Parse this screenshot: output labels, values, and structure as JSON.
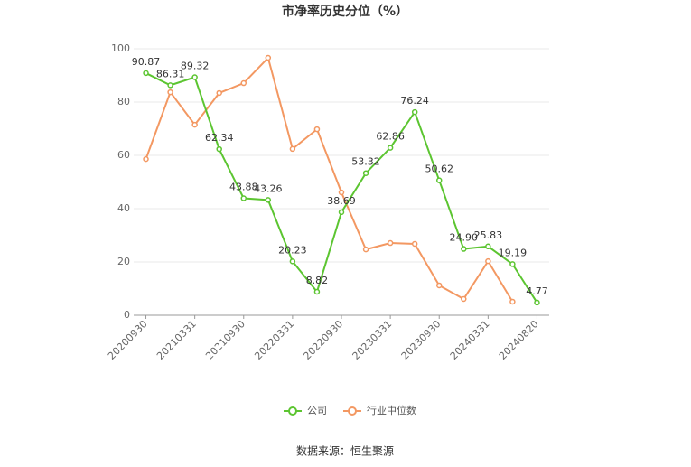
{
  "chart_data": {
    "type": "line",
    "title": "市净率历史分位（%）",
    "source": "数据来源：恒生聚源",
    "categories": [
      "20200930",
      null,
      "20210331",
      null,
      "20210930",
      null,
      "20220331",
      null,
      "20220930",
      null,
      "20230331",
      null,
      "20230930",
      null,
      "20240331",
      null,
      "20240820"
    ],
    "series": [
      {
        "name": "公司",
        "color": "#5cc531",
        "values": [
          90.87,
          86.31,
          89.32,
          62.34,
          43.88,
          43.26,
          20.23,
          8.82,
          38.69,
          53.32,
          62.86,
          76.24,
          50.62,
          24.9,
          25.83,
          19.19,
          4.77
        ],
        "value_labels": [
          "90.87",
          "86.31",
          "89.32",
          "62.34",
          "43.88",
          "43.26",
          "20.23",
          "8.82",
          "38.69",
          "53.32",
          "62.86",
          "76.24",
          "50.62",
          "24.90",
          "25.83",
          "19.19",
          "4.77"
        ]
      },
      {
        "name": "行业中位数",
        "color": "#f39862",
        "values": [
          58.6,
          83.7,
          71.5,
          83.4,
          87.1,
          96.6,
          62.4,
          69.8,
          46.1,
          24.7,
          27.1,
          26.8,
          11.2,
          6.1,
          20.3,
          5.1,
          null
        ]
      }
    ],
    "ylim": [
      0,
      100
    ],
    "yticks": [
      0,
      20,
      40,
      60,
      80,
      100
    ],
    "grid": true,
    "legend": "bottom"
  }
}
